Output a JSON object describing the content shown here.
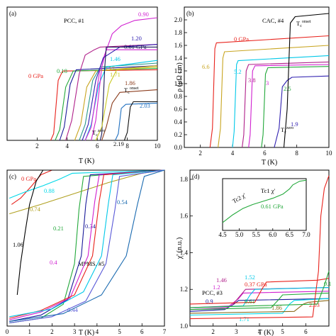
{
  "chart_data": [
    {
      "panel": "(a)",
      "type": "line",
      "subtitle": "PCC, #1",
      "xlabel": "T (K)",
      "ylabel": "",
      "xlim": [
        0,
        10
      ],
      "ylim": [
        0,
        1
      ],
      "xticks": [
        "2",
        "4",
        "6",
        "8",
        "10"
      ],
      "yticks": [],
      "series": [
        {
          "name": "0 GPa",
          "color": "#e8221c",
          "x": [
            2.9,
            3.1,
            3.4,
            3.7,
            10
          ],
          "y": [
            0,
            0.05,
            0.45,
            0.52,
            0.53
          ]
        },
        {
          "name": "0.18",
          "color": "#22a83a",
          "x": [
            3.2,
            3.5,
            3.9,
            4.4,
            10
          ],
          "y": [
            0,
            0.08,
            0.4,
            0.52,
            0.54
          ]
        },
        {
          "name": "",
          "color": "#1a1a9a",
          "x": [
            3.5,
            3.8,
            4.2,
            4.6,
            10
          ],
          "y": [
            0,
            0.1,
            0.42,
            0.53,
            0.56
          ]
        },
        {
          "name": "",
          "color": "#b0208a",
          "x": [
            3.9,
            4.3,
            4.8,
            5.2,
            5.8,
            6.2,
            10
          ],
          "y": [
            0,
            0.15,
            0.5,
            0.64,
            0.68,
            0.7,
            0.72
          ]
        },
        {
          "name": "0.37",
          "color": "#c8a520",
          "x": [
            4.5,
            4.9,
            5.3,
            5.9,
            10
          ],
          "y": [
            0,
            0.12,
            0.4,
            0.52,
            0.56
          ]
        },
        {
          "name": "",
          "color": "#2a9a8a",
          "x": [
            4.8,
            5.2,
            5.7,
            6.2,
            10
          ],
          "y": [
            0,
            0.12,
            0.45,
            0.55,
            0.58
          ]
        },
        {
          "name": "1.46",
          "color": "#00c8e8",
          "x": [
            5.2,
            5.6,
            6.1,
            6.6,
            10
          ],
          "y": [
            0,
            0.12,
            0.42,
            0.55,
            0.6
          ]
        },
        {
          "name": "",
          "color": "#d020d0",
          "x": [
            5.6,
            5.9,
            6.3,
            6.6,
            10
          ],
          "y": [
            0,
            0.15,
            0.55,
            0.68,
            0.68
          ]
        },
        {
          "name": "0.90",
          "color": "#d020d0",
          "x": [
            5.2,
            5.6,
            6.2,
            7.0,
            7.6,
            8.5,
            10
          ],
          "y": [
            0,
            0.1,
            0.55,
            0.8,
            0.86,
            0.9,
            0.92
          ]
        },
        {
          "name": "1.20",
          "color": "#3020b0",
          "x": [
            5.0,
            5.4,
            5.9,
            6.4,
            7.5,
            10
          ],
          "y": [
            0,
            0.12,
            0.45,
            0.62,
            0.7,
            0.72
          ]
        },
        {
          "name": "0.61 GPa",
          "color": "#1a1a5a",
          "x": [
            6.2,
            6.3,
            6.5,
            6.6,
            10
          ],
          "y": [
            0,
            0.05,
            0.55,
            0.7,
            0.7
          ]
        },
        {
          "name": "1.71",
          "color": "#c8c820",
          "x": [
            5.9,
            6.3,
            6.8,
            7.3,
            10
          ],
          "y": [
            0,
            0.1,
            0.42,
            0.53,
            0.55
          ]
        },
        {
          "name": "1.86",
          "color": "#8a3a1a",
          "x": [
            6.3,
            6.6,
            7.0,
            7.5,
            10
          ],
          "y": [
            0,
            0.1,
            0.28,
            0.36,
            0.38
          ]
        },
        {
          "name": "2.03",
          "color": "#2070c0",
          "x": [
            7.2,
            7.4,
            7.6,
            7.9,
            10
          ],
          "y": [
            0,
            0.05,
            0.24,
            0.27,
            0.28
          ]
        },
        {
          "name": "2.19",
          "color": "#101010",
          "x": [
            7.8,
            8.0,
            8.2,
            8.4,
            10
          ],
          "y": [
            0,
            0.06,
            0.25,
            0.29,
            0.29
          ]
        }
      ],
      "annotations": [
        "Tc onset",
        "Tc zero"
      ]
    },
    {
      "panel": "(b)",
      "type": "line",
      "subtitle": "CAC, #4",
      "xlabel": "T (K)",
      "ylabel": "ρ (μΩ cm)",
      "xlim": [
        1,
        10
      ],
      "ylim": [
        0,
        2.2
      ],
      "xticks": [
        "2",
        "4",
        "6",
        "8",
        "10"
      ],
      "yticks": [
        "0.0",
        "0.2",
        "0.4",
        "0.6",
        "0.8",
        "1.0",
        "1.2",
        "1.4",
        "1.6",
        "1.8",
        "2.0"
      ],
      "series": [
        {
          "name": "0 GPa",
          "color": "#e8221c",
          "x": [
            2.6,
            2.75,
            2.9,
            3.0,
            10
          ],
          "y": [
            0,
            0.3,
            1.55,
            1.64,
            1.75
          ]
        },
        {
          "name": "6.6",
          "color": "#c8a520",
          "x": [
            3.1,
            3.25,
            3.4,
            3.5,
            10
          ],
          "y": [
            0,
            0.3,
            1.4,
            1.5,
            1.6
          ]
        },
        {
          "name": "5.2",
          "color": "#00c8e8",
          "x": [
            4.0,
            4.1,
            4.25,
            4.35,
            10
          ],
          "y": [
            0,
            0.25,
            1.3,
            1.36,
            1.44
          ]
        },
        {
          "name": "3.8",
          "color": "#b0208a",
          "x": [
            4.6,
            4.7,
            4.85,
            5.0,
            10
          ],
          "y": [
            0,
            0.2,
            1.2,
            1.3,
            1.34
          ]
        },
        {
          "name": "3",
          "color": "#d020d0",
          "x": [
            5.0,
            5.1,
            5.25,
            5.4,
            10
          ],
          "y": [
            0,
            0.2,
            1.2,
            1.28,
            1.3
          ]
        },
        {
          "name": "2.5",
          "color": "#22a83a",
          "x": [
            5.8,
            5.9,
            6.05,
            6.2,
            10
          ],
          "y": [
            0,
            0.2,
            1.15,
            1.25,
            1.27
          ]
        },
        {
          "name": "1.9",
          "color": "#3020b0",
          "x": [
            6.6,
            6.9,
            7.1,
            7.4,
            7.7,
            10
          ],
          "y": [
            0,
            0.3,
            0.95,
            1.05,
            1.1,
            1.12
          ]
        },
        {
          "name": "",
          "color": "#000000",
          "x": [
            7.2,
            7.4,
            7.6,
            7.9,
            10
          ],
          "y": [
            0,
            0.6,
            1.95,
            2.05,
            2.1
          ]
        }
      ],
      "annotations": [
        "Tc onset",
        "Tc zero"
      ]
    },
    {
      "panel": "(c)",
      "type": "line",
      "subtitle": "MPMS, #5",
      "xlabel": "T (K)",
      "ylabel": "",
      "xlim": [
        0,
        7
      ],
      "ylim": [
        0,
        1
      ],
      "xticks": [
        "0",
        "1",
        "2",
        "3",
        "4",
        "5",
        "6",
        "7"
      ],
      "yticks": [],
      "series": [
        {
          "name": "0 GPa",
          "color": "#e8221c",
          "x": [
            0.2,
            0.6,
            1.1,
            1.5,
            2.0,
            7
          ],
          "y": [
            0.78,
            0.82,
            0.9,
            0.97,
            1.0,
            1.0
          ]
        },
        {
          "name": "0.88",
          "color": "#00d8e8",
          "x": [
            0.1,
            0.8,
            1.6,
            2.3,
            2.9,
            7
          ],
          "y": [
            0.82,
            0.86,
            0.9,
            0.94,
            0.98,
            1.0
          ]
        },
        {
          "name": "0.74",
          "color": "#b0a020",
          "x": [
            0.1,
            1.5,
            3.0,
            4.5,
            6.0,
            7
          ],
          "y": [
            0.72,
            0.78,
            0.85,
            0.92,
            0.98,
            1.0
          ]
        },
        {
          "name": "1.06",
          "color": "#000000",
          "x": [
            0.45,
            0.6,
            0.8,
            1.0,
            1.3,
            1.6,
            7
          ],
          "y": [
            0.2,
            0.4,
            0.6,
            0.78,
            0.93,
            1.0,
            1.0
          ]
        },
        {
          "name": "0.21",
          "color": "#22a83a",
          "x": [
            0.1,
            1.5,
            2.5,
            3.0,
            3.2,
            3.4,
            7
          ],
          "y": [
            0.02,
            0.05,
            0.14,
            0.4,
            0.75,
            0.96,
            1.0
          ]
        },
        {
          "name": "0.34",
          "color": "#1a1a9a",
          "x": [
            0.1,
            1.5,
            2.7,
            3.3,
            3.5,
            3.7,
            7
          ],
          "y": [
            0.03,
            0.07,
            0.17,
            0.45,
            0.78,
            0.97,
            1.0
          ]
        },
        {
          "name": "0.4",
          "color": "#d020d0",
          "x": [
            0.1,
            1.5,
            2.8,
            3.6,
            3.9,
            4.1,
            7
          ],
          "y": [
            0.04,
            0.09,
            0.18,
            0.45,
            0.8,
            0.97,
            1.0
          ]
        },
        {
          "name": "",
          "color": "#e8221c",
          "x": [
            0.1,
            1.5,
            3.0,
            3.8,
            4.1,
            4.3,
            7
          ],
          "y": [
            0.05,
            0.1,
            0.2,
            0.45,
            0.8,
            0.97,
            1.0
          ]
        },
        {
          "name": "",
          "color": "#00c8e8",
          "x": [
            0.1,
            2.0,
            3.4,
            4.2,
            4.5,
            4.7,
            7
          ],
          "y": [
            0.06,
            0.11,
            0.22,
            0.45,
            0.78,
            0.97,
            1.0
          ]
        },
        {
          "name": "0.44",
          "color": "#5a5ad8",
          "x": [
            0.1,
            2.0,
            3.5,
            4.4,
            4.8,
            5.0,
            7
          ],
          "y": [
            0.02,
            0.06,
            0.16,
            0.4,
            0.75,
            0.96,
            1.0
          ]
        },
        {
          "name": "0.54",
          "color": "#1a6ab0",
          "x": [
            0.1,
            2.5,
            4.2,
            5.3,
            5.8,
            6.1,
            7
          ],
          "y": [
            0.03,
            0.08,
            0.2,
            0.45,
            0.78,
            0.96,
            1.0
          ]
        }
      ],
      "annotations": []
    },
    {
      "panel": "(d)",
      "type": "line",
      "subtitle": "PCC, #3",
      "xlabel": "T (K)",
      "ylabel": "χ' (n.u.)",
      "xlim": [
        1,
        7
      ],
      "ylim": [
        1.0,
        1.85
      ],
      "xticks": [
        "2",
        "3",
        "4",
        "5",
        "6"
      ],
      "yticks": [
        "1.0",
        "1.2",
        "1.4",
        "1.6",
        "1.8"
      ],
      "series": [
        {
          "name": "0.9",
          "color": "#1a1a9a",
          "x": [
            1.0,
            2.5,
            2.9,
            3.1,
            7
          ],
          "y": [
            1.08,
            1.09,
            1.12,
            1.14,
            1.15
          ]
        },
        {
          "name": "1.2",
          "color": "#d020d0",
          "x": [
            1.0,
            2.6,
            3.1,
            3.3,
            7
          ],
          "y": [
            1.09,
            1.1,
            1.15,
            1.18,
            1.19
          ]
        },
        {
          "name": "1.46",
          "color": "#b0208a",
          "x": [
            1.0,
            2.8,
            3.2,
            3.4,
            7
          ],
          "y": [
            1.1,
            1.11,
            1.17,
            1.2,
            1.21
          ]
        },
        {
          "name": "1.52",
          "color": "#00c8e8",
          "x": [
            1.0,
            3.3,
            3.6,
            3.8,
            7
          ],
          "y": [
            1.1,
            1.11,
            1.17,
            1.2,
            1.21
          ]
        },
        {
          "name": "0.37 GPa",
          "color": "#e8221c",
          "x": [
            1.0,
            3.8,
            4.1,
            4.3,
            6.5,
            7
          ],
          "y": [
            1.12,
            1.13,
            1.2,
            1.24,
            1.25,
            1.26
          ]
        },
        {
          "name": "0.61",
          "color": "#22a83a",
          "x": [
            1.0,
            4.5,
            4.8,
            5.0,
            7
          ],
          "y": [
            1.09,
            1.1,
            1.14,
            1.17,
            1.18
          ]
        },
        {
          "name": "1.71",
          "color": "#00d8e8",
          "x": [
            1.0,
            5.0,
            5.3,
            5.5,
            7
          ],
          "y": [
            1.06,
            1.07,
            1.12,
            1.14,
            1.15
          ]
        },
        {
          "name": "1.86",
          "color": "#8a6a1a",
          "x": [
            1.0,
            5.5,
            5.9,
            6.1,
            7
          ],
          "y": [
            1.07,
            1.08,
            1.12,
            1.13,
            1.14
          ]
        },
        {
          "name": "2.03",
          "color": "#e8221c",
          "x": [
            1.0,
            6.3,
            6.55,
            6.65,
            6.8,
            7
          ],
          "y": [
            1.04,
            1.05,
            1.3,
            1.6,
            1.75,
            1.82
          ]
        },
        {
          "name": "0.1",
          "color": "#22a83a",
          "x": [
            1.0,
            6.5,
            6.8,
            7
          ],
          "y": [
            1.1,
            1.12,
            1.22,
            1.3
          ]
        }
      ],
      "inset": {
        "xlim": [
          4.5,
          7.0
        ],
        "xticks": [
          "4.5",
          "5.0",
          "5.5",
          "6.0",
          "6.5",
          "7.0"
        ],
        "series": [
          {
            "name": "0.61 GPa",
            "color": "#22a83a",
            "x": [
              4.5,
              4.8,
              5.1,
              5.4,
              5.7,
              6.0,
              6.3,
              6.5,
              6.6,
              6.8,
              7.0
            ],
            "y": [
              0.15,
              0.3,
              0.42,
              0.5,
              0.56,
              0.62,
              0.7,
              0.8,
              0.88,
              0.95,
              0.97
            ]
          }
        ],
        "annotations": [
          "Tc2 χ'",
          "Tc1 χ'"
        ]
      }
    }
  ]
}
